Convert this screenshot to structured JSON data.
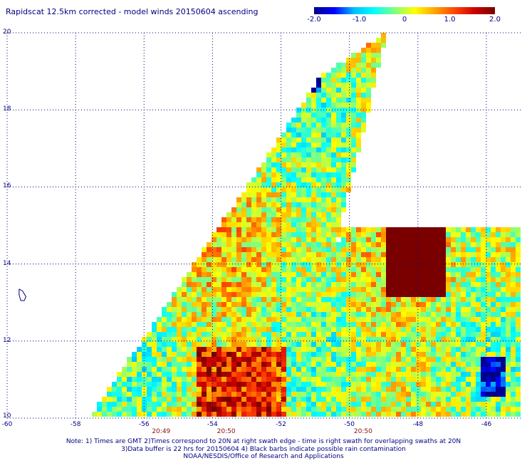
{
  "title": "Rapidscat 12.5km corrected - model winds 20150604 ascending",
  "colorbar": {
    "min": -2.0,
    "max": 2.0,
    "tick_labels": [
      "-2.0",
      "-1.0",
      "0",
      "1.0",
      "2.0"
    ],
    "tick_values": [
      -2.0,
      -1.0,
      0,
      1.0,
      2.0
    ],
    "colors": [
      "#00008b",
      "#0000ff",
      "#00bfff",
      "#00ffff",
      "#80ff80",
      "#ffff00",
      "#ffa500",
      "#ff4500",
      "#cc0000",
      "#7a0000"
    ]
  },
  "axes": {
    "lon_range": [
      -60,
      -45
    ],
    "lat_range": [
      10,
      20
    ],
    "lon_ticks": [
      -60,
      -58,
      -56,
      -54,
      -52,
      -50,
      -48,
      -46
    ],
    "lon_tick_labels": [
      "-60",
      "-58",
      "-56",
      "-54",
      "-52",
      "-50",
      "-48",
      "-46"
    ],
    "lat_ticks": [
      10,
      12,
      14,
      16,
      18,
      20
    ],
    "lat_tick_labels": [
      "10",
      "12",
      "14",
      "16",
      "18",
      "20"
    ],
    "grid": "dotted"
  },
  "swath_times": [
    {
      "text": "20:49",
      "lon": -55.5
    },
    {
      "text": "20:50",
      "lon": -53.6
    },
    {
      "text": "20:50",
      "lon": -49.6
    }
  ],
  "swaths": [
    {
      "corners_lonlat": [
        [
          -57.6,
          10.0
        ],
        [
          -50.8,
          18.9
        ],
        [
          -48.9,
          20.0
        ],
        [
          -51.6,
          10.0
        ]
      ]
    },
    {
      "corners_lonlat": [
        [
          -51.9,
          10.0
        ],
        [
          -50.2,
          14.9
        ],
        [
          -45.0,
          14.9
        ],
        [
          -45.0,
          10.0
        ]
      ]
    }
  ],
  "features": [
    {
      "type": "saturated-region",
      "lon_range": [
        -49.0,
        -47.2
      ],
      "lat_range": [
        13.2,
        14.9
      ]
    },
    {
      "type": "high-region",
      "lon_range": [
        -54.5,
        -51.8
      ],
      "lat_range": [
        10.0,
        11.8
      ]
    },
    {
      "type": "low-region",
      "lon_range": [
        -51.3,
        -50.8
      ],
      "lat_range": [
        18.5,
        19.0
      ]
    },
    {
      "type": "low-region",
      "lon_range": [
        -46.2,
        -45.5
      ],
      "lat_range": [
        10.5,
        11.6
      ]
    }
  ],
  "land": [
    {
      "name": "island",
      "outline_lonlat": [
        [
          -59.65,
          13.35
        ],
        [
          -59.55,
          13.3
        ],
        [
          -59.45,
          13.15
        ],
        [
          -59.5,
          13.05
        ],
        [
          -59.6,
          13.05
        ],
        [
          -59.65,
          13.2
        ],
        [
          -59.65,
          13.35
        ]
      ]
    }
  ],
  "notes": [
    "Note: 1) Times are GMT 2)Times correspond to 20N at right swath edge - time is right swath for overlapping swaths at 20N",
    "3)Data buffer is 22 hrs for 20150604 4) Black barbs indicate possible rain contamination",
    "NOAA/NESDIS/Office of Research and Applications"
  ]
}
